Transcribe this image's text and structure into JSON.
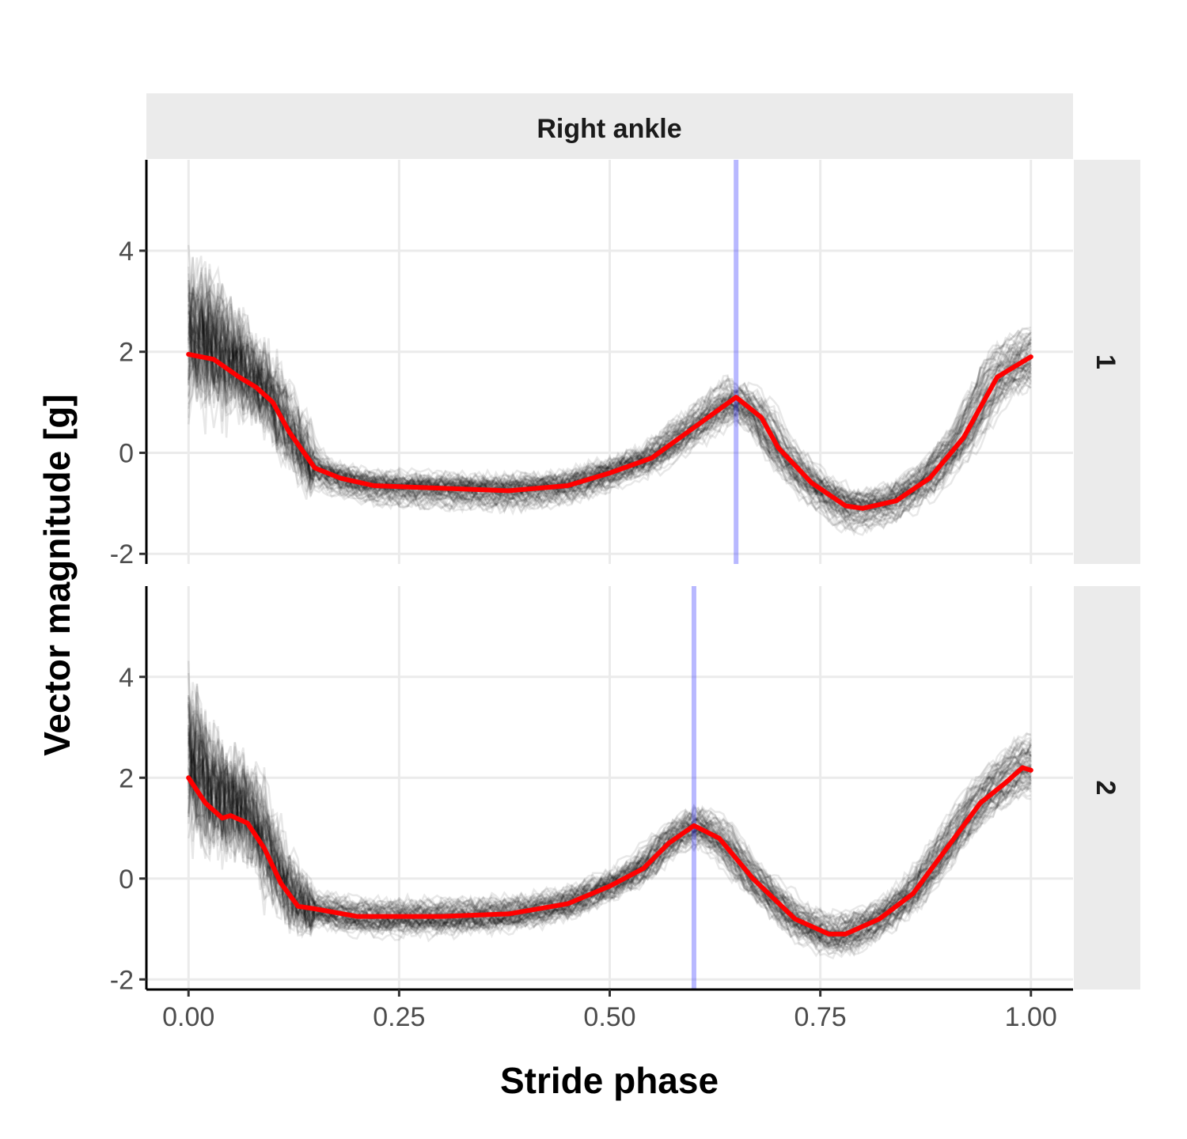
{
  "chart_data": {
    "type": "line",
    "column_strip": "Right ankle",
    "xlabel": "Stride phase",
    "ylabel": "Vector magnitude [g]",
    "xlim": [
      -0.05,
      1.05
    ],
    "ylim": [
      -2.2,
      5.8
    ],
    "x_ticks": [
      "0.00",
      "0.25",
      "0.50",
      "0.75",
      "1.00"
    ],
    "y_ticks": [
      "-2",
      "0",
      "2",
      "4"
    ],
    "grid": true,
    "colors": {
      "individual_strides": "#000000",
      "mean_line": "#ff0000",
      "vline": "#3333ff",
      "strip_bg": "#ebebeb",
      "grid": "#ebebeb"
    },
    "panels": [
      {
        "row_label": "1",
        "vline_x": 0.65,
        "mean_x": [
          0.0,
          0.03,
          0.06,
          0.08,
          0.1,
          0.12,
          0.15,
          0.18,
          0.22,
          0.3,
          0.38,
          0.45,
          0.5,
          0.55,
          0.6,
          0.65,
          0.68,
          0.7,
          0.74,
          0.78,
          0.8,
          0.84,
          0.88,
          0.92,
          0.96,
          1.0
        ],
        "mean_y": [
          1.95,
          1.85,
          1.5,
          1.3,
          1.0,
          0.4,
          -0.3,
          -0.5,
          -0.65,
          -0.7,
          -0.75,
          -0.65,
          -0.4,
          -0.1,
          0.5,
          1.1,
          0.7,
          0.1,
          -0.6,
          -1.05,
          -1.1,
          -0.95,
          -0.5,
          0.3,
          1.5,
          1.9
        ]
      },
      {
        "row_label": "2",
        "vline_x": 0.6,
        "mean_x": [
          0.0,
          0.02,
          0.04,
          0.05,
          0.07,
          0.09,
          0.11,
          0.13,
          0.15,
          0.2,
          0.3,
          0.38,
          0.45,
          0.5,
          0.54,
          0.57,
          0.6,
          0.63,
          0.67,
          0.72,
          0.76,
          0.78,
          0.82,
          0.86,
          0.9,
          0.94,
          0.97,
          0.99,
          1.0
        ],
        "mean_y": [
          2.0,
          1.5,
          1.2,
          1.25,
          1.1,
          0.6,
          -0.1,
          -0.55,
          -0.6,
          -0.75,
          -0.75,
          -0.7,
          -0.5,
          -0.15,
          0.2,
          0.7,
          1.05,
          0.8,
          0.0,
          -0.8,
          -1.1,
          -1.1,
          -0.8,
          -0.3,
          0.6,
          1.5,
          1.9,
          2.2,
          2.15
        ]
      }
    ]
  }
}
